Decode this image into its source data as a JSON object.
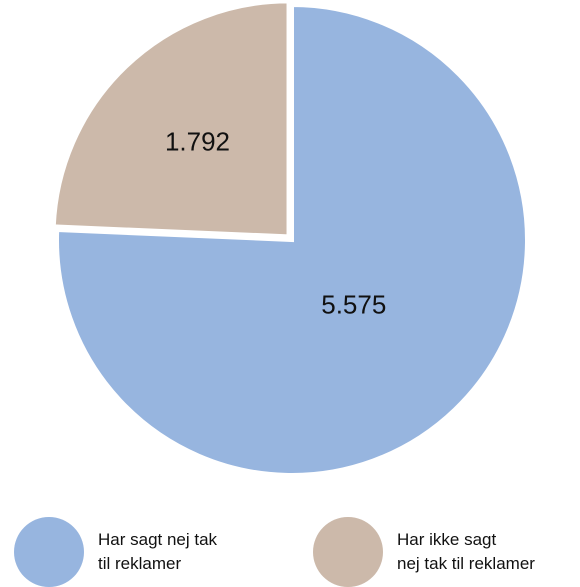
{
  "chart_data": {
    "type": "pie",
    "title": "",
    "series": [
      {
        "name": "Har sagt nej tak til reklamer",
        "value": 5575,
        "label": "5.575",
        "color": "#97b5df"
      },
      {
        "name": "Har ikke sagt nej tak til reklamer",
        "value": 1792,
        "label": "1.792",
        "color": "#ccb9aa"
      }
    ],
    "slice_labels": [
      "5.575",
      "1.792"
    ],
    "legend": {
      "placement": "bottom",
      "items": [
        {
          "line1": "Har sagt nej tak",
          "line2": "til reklamer",
          "color": "#97b5df"
        },
        {
          "line1": "Har ikke sagt",
          "line2": "nej tak til reklamer",
          "color": "#ccb9aa"
        }
      ]
    }
  }
}
